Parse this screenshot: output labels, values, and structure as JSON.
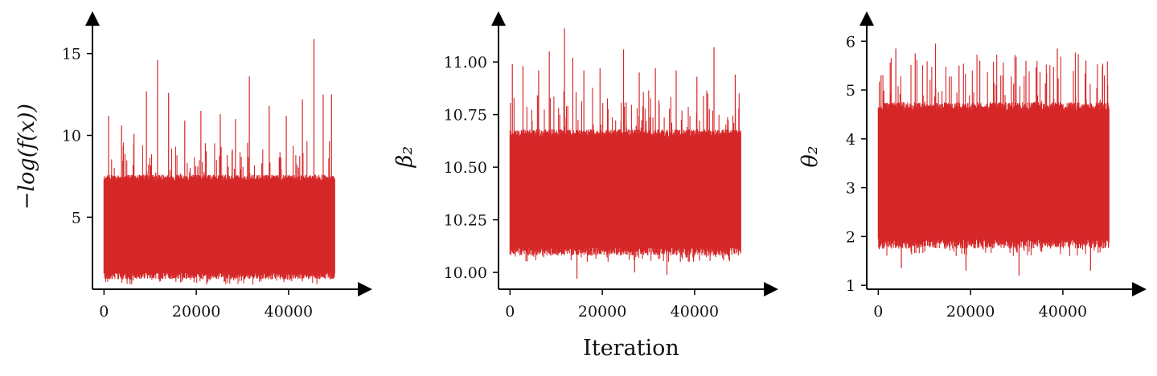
{
  "figure": {
    "xlabel": "Iteration",
    "trace_color": "#d62728"
  },
  "chart_data": [
    {
      "type": "line",
      "ylabel": "−log(f(x))",
      "xlim": [
        -2500,
        55000
      ],
      "ylim": [
        0.6,
        16.8
      ],
      "xticks": [
        0,
        20000,
        40000
      ],
      "xtick_labels": [
        "0",
        "20000",
        "40000"
      ],
      "yticks": [
        5,
        10,
        15
      ],
      "ytick_labels": [
        "5",
        "10",
        "15"
      ],
      "n_iterations": 50000,
      "band": {
        "low": 1.2,
        "high": 7.6,
        "mean": 3.2
      },
      "spikes": [
        {
          "x": 1000,
          "y": 11.2
        },
        {
          "x": 3800,
          "y": 10.6
        },
        {
          "x": 6500,
          "y": 10.1
        },
        {
          "x": 9200,
          "y": 12.7
        },
        {
          "x": 11600,
          "y": 14.6
        },
        {
          "x": 14000,
          "y": 12.6
        },
        {
          "x": 17500,
          "y": 10.9
        },
        {
          "x": 21000,
          "y": 11.5
        },
        {
          "x": 25200,
          "y": 11.3
        },
        {
          "x": 28500,
          "y": 11.0
        },
        {
          "x": 31500,
          "y": 13.6
        },
        {
          "x": 35800,
          "y": 11.8
        },
        {
          "x": 39500,
          "y": 11.2
        },
        {
          "x": 43000,
          "y": 12.2
        },
        {
          "x": 45500,
          "y": 15.9
        },
        {
          "x": 47500,
          "y": 12.5
        },
        {
          "x": 49300,
          "y": 12.5
        }
      ],
      "grid": false
    },
    {
      "type": "line",
      "ylabel": "β₂",
      "xlim": [
        -2500,
        55000
      ],
      "ylim": [
        9.92,
        11.18
      ],
      "xticks": [
        0,
        20000,
        40000
      ],
      "xtick_labels": [
        "0",
        "20000",
        "40000"
      ],
      "yticks": [
        10.0,
        10.25,
        10.5,
        10.75,
        11.0
      ],
      "ytick_labels": [
        "10.00",
        "10.25",
        "10.50",
        "10.75",
        "11.00"
      ],
      "n_iterations": 50000,
      "band": {
        "low": 10.08,
        "high": 10.68,
        "mean": 10.38
      },
      "spikes": [
        {
          "x": 500,
          "y": 10.99
        },
        {
          "x": 2800,
          "y": 10.98
        },
        {
          "x": 6200,
          "y": 10.96
        },
        {
          "x": 8500,
          "y": 11.05
        },
        {
          "x": 11800,
          "y": 11.16
        },
        {
          "x": 13600,
          "y": 11.02
        },
        {
          "x": 16000,
          "y": 10.96
        },
        {
          "x": 19500,
          "y": 10.97
        },
        {
          "x": 24600,
          "y": 11.06
        },
        {
          "x": 28000,
          "y": 10.95
        },
        {
          "x": 31500,
          "y": 10.97
        },
        {
          "x": 36000,
          "y": 10.96
        },
        {
          "x": 40500,
          "y": 10.93
        },
        {
          "x": 44200,
          "y": 11.07
        },
        {
          "x": 48800,
          "y": 10.94
        }
      ],
      "dips": [
        {
          "x": 14500,
          "y": 9.97
        },
        {
          "x": 27000,
          "y": 10.0
        },
        {
          "x": 34000,
          "y": 9.99
        }
      ],
      "grid": false
    },
    {
      "type": "line",
      "ylabel": "θ₂",
      "xlim": [
        -2500,
        55000
      ],
      "ylim": [
        0.92,
        6.35
      ],
      "xticks": [
        0,
        20000,
        40000
      ],
      "xtick_labels": [
        "0",
        "20000",
        "40000"
      ],
      "yticks": [
        1,
        2,
        3,
        4,
        5,
        6
      ],
      "ytick_labels": [
        "1",
        "2",
        "3",
        "4",
        "5",
        "6"
      ],
      "n_iterations": 50000,
      "band": {
        "low": 1.75,
        "high": 4.75,
        "mean": 3.2
      },
      "spikes": [
        {
          "x": 600,
          "y": 5.3
        },
        {
          "x": 3800,
          "y": 5.85
        },
        {
          "x": 8000,
          "y": 5.75
        },
        {
          "x": 12400,
          "y": 5.95
        },
        {
          "x": 17500,
          "y": 5.5
        },
        {
          "x": 22000,
          "y": 5.6
        },
        {
          "x": 27000,
          "y": 5.3
        },
        {
          "x": 32000,
          "y": 5.6
        },
        {
          "x": 38800,
          "y": 5.85
        },
        {
          "x": 45000,
          "y": 5.6
        },
        {
          "x": 49000,
          "y": 5.3
        }
      ],
      "dips": [
        {
          "x": 5000,
          "y": 1.35
        },
        {
          "x": 19000,
          "y": 1.3
        },
        {
          "x": 30500,
          "y": 1.2
        },
        {
          "x": 46000,
          "y": 1.3
        }
      ],
      "grid": false
    }
  ]
}
